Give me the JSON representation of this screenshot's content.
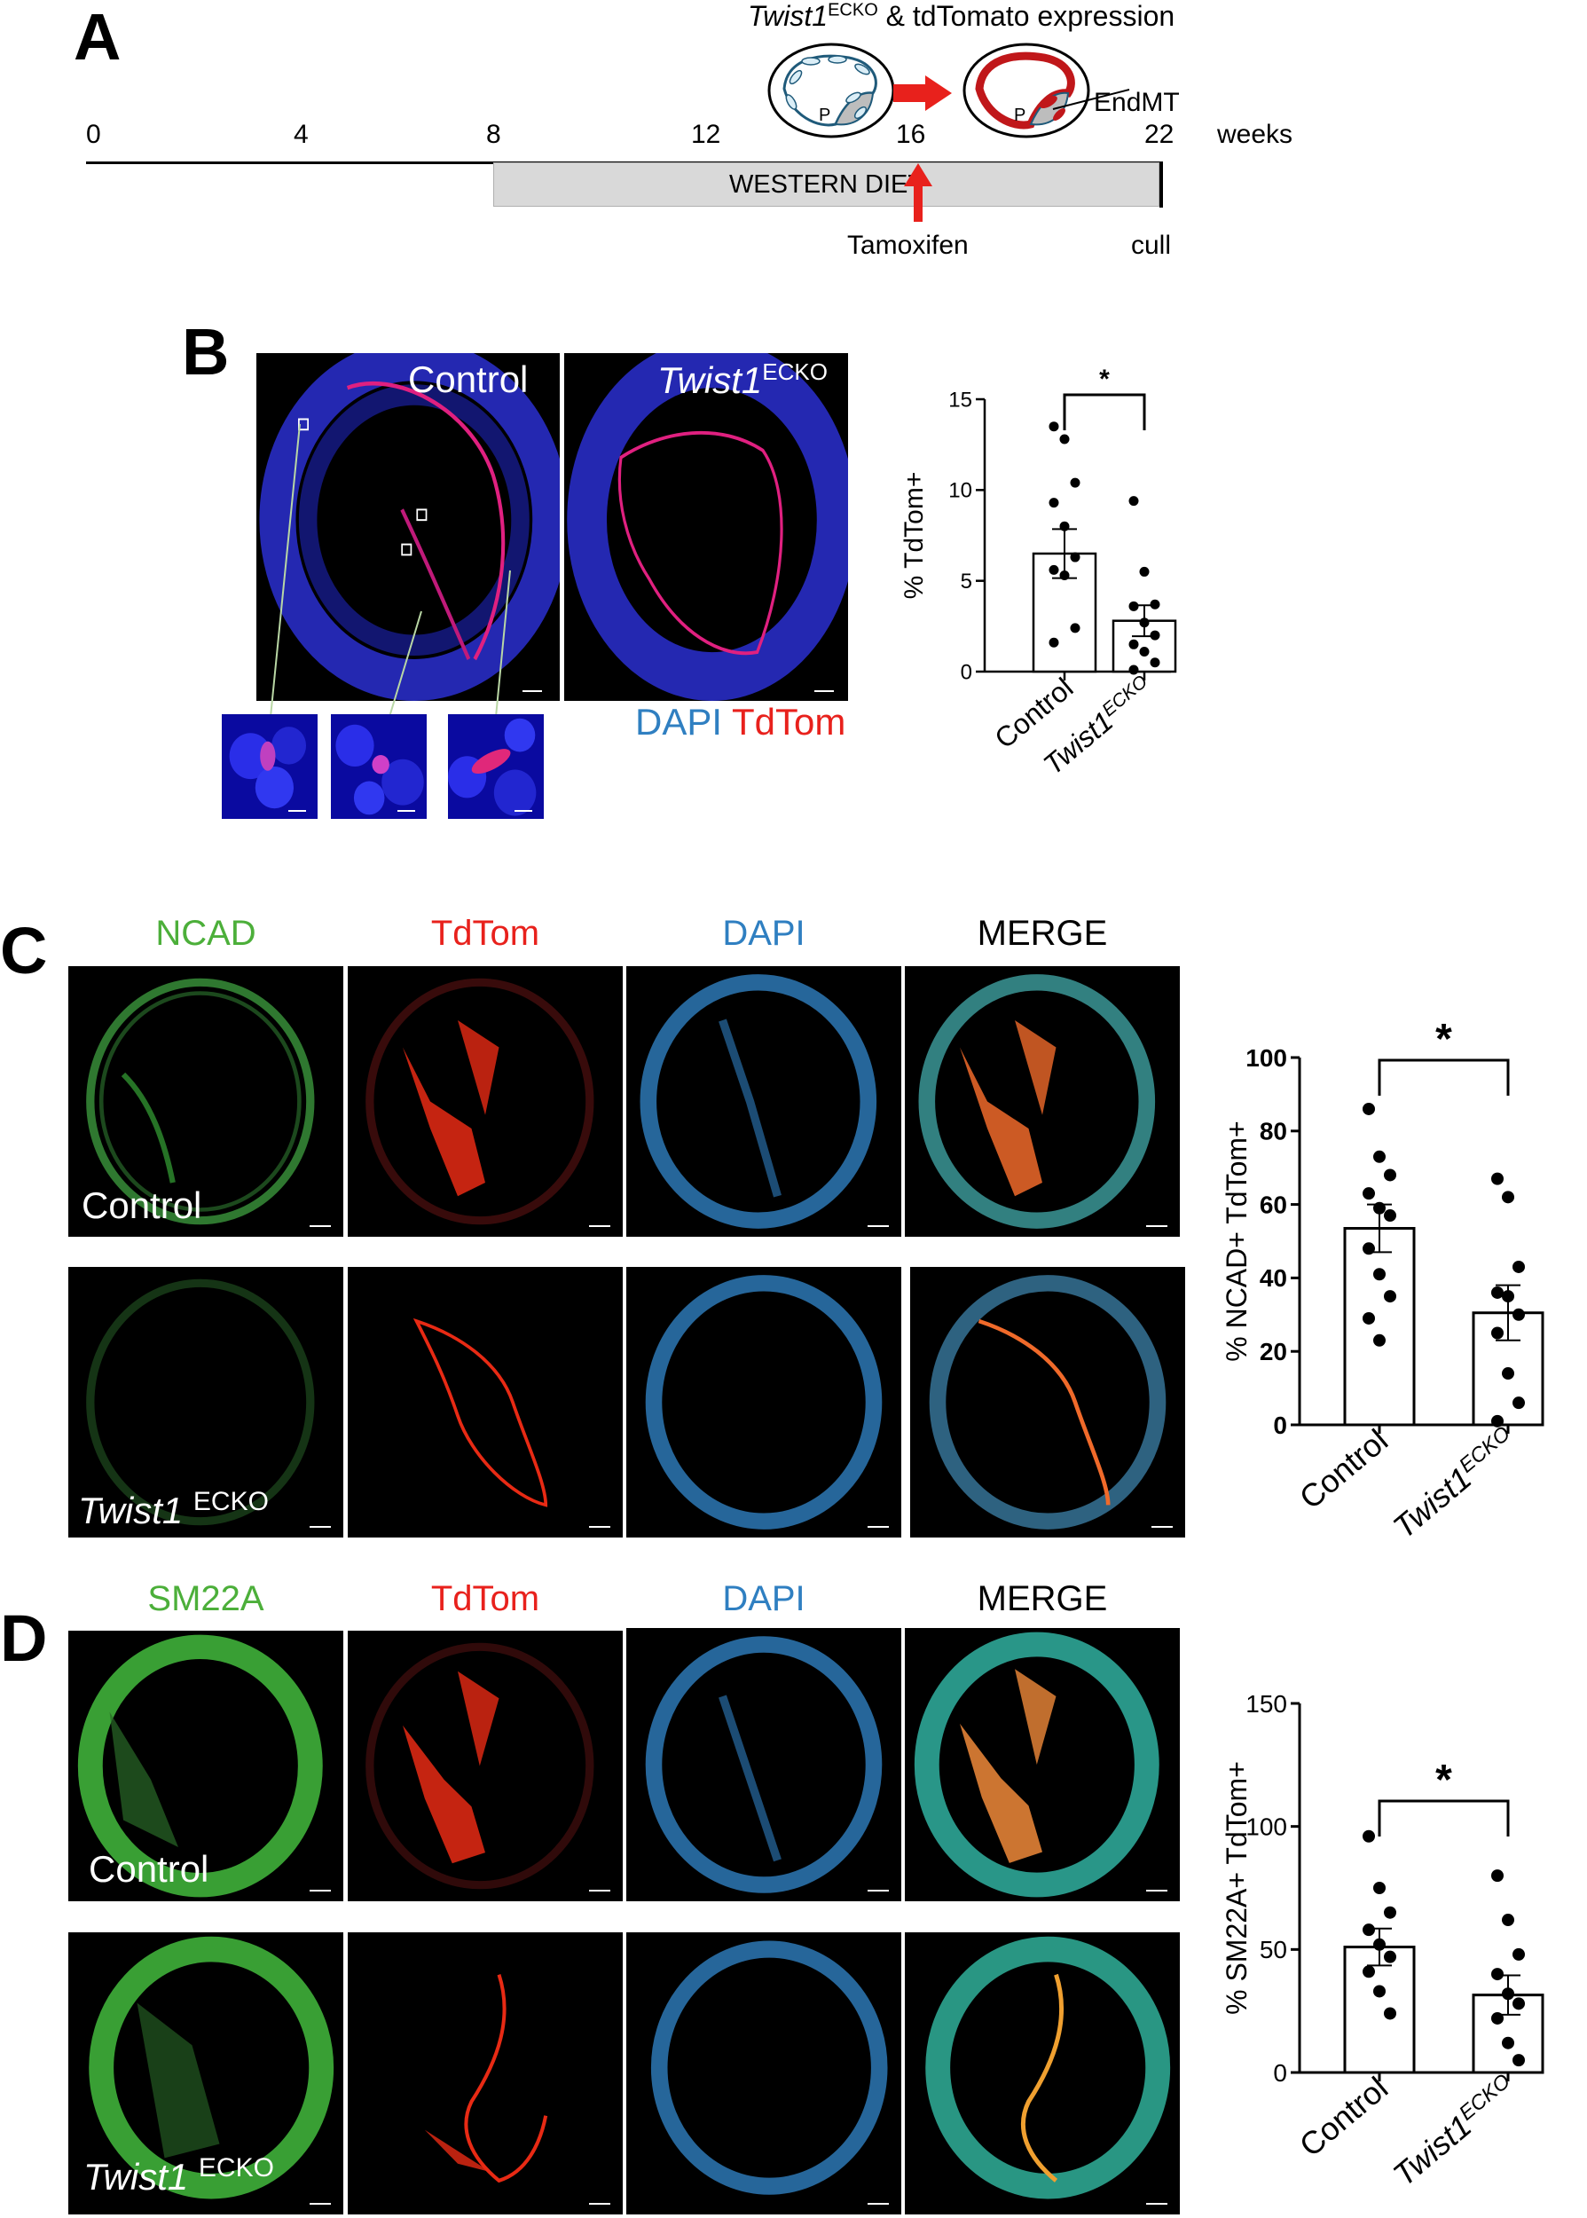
{
  "panels": {
    "a": "A",
    "b": "B",
    "c": "C",
    "d": "D"
  },
  "timeline": {
    "ticks": [
      "0",
      "4",
      "8",
      "12",
      "16",
      "22"
    ],
    "unit": "weeks",
    "diet": "WESTERN DIET",
    "tamoxifen": "Tamoxifen",
    "cull": "cull",
    "expression_gene": "Twist1",
    "expression_sup": "ECKO",
    "expression_rest": " & tdTomato expression",
    "plaque_letter": "P",
    "endmt": "EndMT"
  },
  "panel_b": {
    "control": "Control",
    "ko_gene": "Twist1",
    "ko_sup": "ECKO",
    "dapi": "DAPI",
    "tdtom": "TdTom"
  },
  "channels": [
    "NCAD",
    "TdTom",
    "DAPI",
    "MERGE"
  ],
  "channels_d": [
    "SM22A",
    "TdTom",
    "DAPI",
    "MERGE"
  ],
  "conditions": {
    "control": "Control",
    "ko_gene": "Twist1",
    "ko_sup": "ECKO"
  },
  "colors": {
    "green": "#4caf3a",
    "red": "#e8211c",
    "blue": "#2f7fc1",
    "bar_edge": "#000000"
  },
  "chart_data": [
    {
      "type": "bar",
      "panel": "B",
      "categories": [
        "Control",
        "Twist1ECKO"
      ],
      "ylabel": "% TdTom+",
      "ylim": [
        0,
        15
      ],
      "yticks": [
        "0",
        "5",
        "10",
        "15"
      ],
      "values": [
        6.5,
        2.8
      ],
      "sem": [
        1.35,
        0.85
      ],
      "points": [
        [
          13.5,
          12.8,
          10.4,
          9.3,
          8.0,
          6.3,
          5.6,
          5.3,
          2.4,
          1.6
        ],
        [
          9.4,
          5.5,
          3.7,
          3.6,
          2.7,
          2.0,
          1.5,
          1.1,
          0.5,
          0.1
        ]
      ],
      "significance": "*"
    },
    {
      "type": "bar",
      "panel": "C",
      "categories": [
        "Control",
        "Twist1ECKO"
      ],
      "ylabel": "% NCAD+ TdTom+",
      "ylim": [
        0,
        100
      ],
      "yticks": [
        "0",
        "20",
        "40",
        "60",
        "80",
        "100"
      ],
      "values": [
        53.5,
        30.5
      ],
      "sem": [
        6.5,
        7.5
      ],
      "points": [
        [
          86,
          73,
          68,
          63,
          59,
          57,
          48,
          41,
          35,
          29,
          23
        ],
        [
          67,
          62,
          43,
          36,
          35,
          30,
          25,
          14,
          6,
          1
        ]
      ],
      "significance": "*"
    },
    {
      "type": "bar",
      "panel": "D",
      "categories": [
        "Control",
        "Twist1ECKO"
      ],
      "ylabel": "% SM22A+ TdTom+",
      "ylim": [
        0,
        150
      ],
      "yticks": [
        "0",
        "50",
        "100",
        "150"
      ],
      "values": [
        51,
        31.5
      ],
      "sem": [
        7.5,
        8
      ],
      "points": [
        [
          96,
          75,
          65,
          58,
          52,
          47,
          41,
          33,
          24
        ],
        [
          80,
          62,
          48,
          40,
          32,
          28,
          22,
          12,
          5
        ]
      ],
      "significance": "*"
    }
  ]
}
